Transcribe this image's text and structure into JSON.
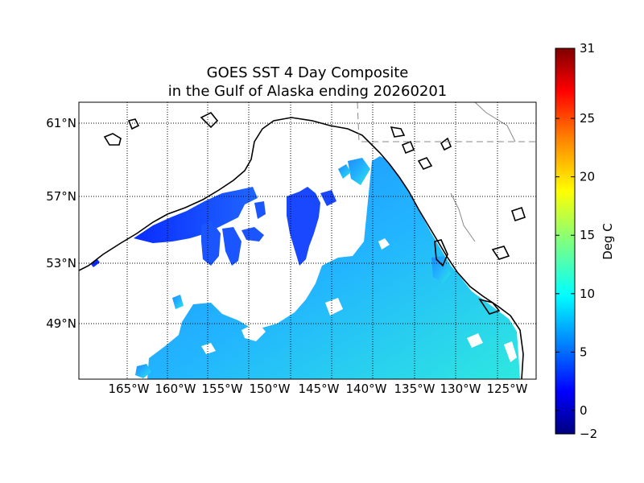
{
  "title": {
    "line1": "GOES SST 4 Day Composite",
    "line2": "in the Gulf of Alaska ending 20260201"
  },
  "map": {
    "region": "Gulf of Alaska",
    "lon_ticks": [
      "165°W",
      "160°W",
      "155°W",
      "150°W",
      "145°W",
      "140°W",
      "135°W",
      "130°W",
      "125°W"
    ],
    "lat_ticks": [
      "61°N",
      "57°N",
      "53°N",
      "49°N"
    ],
    "graticule": "dotted",
    "land_color": "#ffffff",
    "coast_color": "#000000",
    "no_data_color": "#ffffff"
  },
  "colorbar": {
    "label": "Deg C",
    "min": -2,
    "max": 31,
    "tick_labels": [
      "31",
      "25",
      "20",
      "15",
      "10",
      "5",
      "0",
      "−2"
    ],
    "tick_values": [
      31,
      25,
      20,
      15,
      10,
      5,
      0,
      -2
    ],
    "colormap": "jet",
    "colors": [
      "#00007f",
      "#0000ff",
      "#007fff",
      "#00ffff",
      "#7fff7f",
      "#ffff00",
      "#ff7f00",
      "#ff0000",
      "#7f0000"
    ]
  }
}
